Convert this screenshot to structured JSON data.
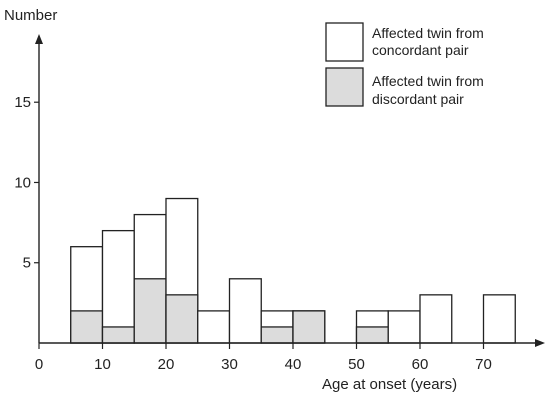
{
  "chart_data": {
    "type": "bar",
    "subtype": "stacked-histogram",
    "ylabel": "Number",
    "xlabel": "Age at onset  (years)",
    "xlim": [
      0,
      80
    ],
    "ylim": [
      0,
      19
    ],
    "xticks": [
      0,
      10,
      20,
      30,
      40,
      50,
      60,
      70
    ],
    "yticks": [
      5,
      10,
      15
    ],
    "legend_position": "top-right",
    "bin_width": 5,
    "bins": [
      {
        "start": 5,
        "end": 10,
        "concordant": 6,
        "discordant": 2
      },
      {
        "start": 10,
        "end": 15,
        "concordant": 7,
        "discordant": 1
      },
      {
        "start": 15,
        "end": 20,
        "concordant": 8,
        "discordant": 4
      },
      {
        "start": 20,
        "end": 25,
        "concordant": 9,
        "discordant": 3
      },
      {
        "start": 25,
        "end": 30,
        "concordant": 2,
        "discordant": 0
      },
      {
        "start": 30,
        "end": 35,
        "concordant": 4,
        "discordant": 0
      },
      {
        "start": 35,
        "end": 40,
        "concordant": 2,
        "discordant": 1
      },
      {
        "start": 40,
        "end": 45,
        "concordant": 2,
        "discordant": 2
      },
      {
        "start": 50,
        "end": 55,
        "concordant": 2,
        "discordant": 1
      },
      {
        "start": 55,
        "end": 60,
        "concordant": 2,
        "discordant": 0
      },
      {
        "start": 60,
        "end": 65,
        "concordant": 3,
        "discordant": 0
      },
      {
        "start": 70,
        "end": 75,
        "concordant": 3,
        "discordant": 0
      }
    ],
    "series": [
      {
        "name": "Affected twin from concordant pair",
        "color": "#ffffff"
      },
      {
        "name": "Affected twin from discordant pair",
        "color": "#dcdcdc"
      }
    ],
    "legend": [
      {
        "line1": "Affected twin from",
        "line2": "concordant pair"
      },
      {
        "line1": "Affected twin from",
        "line2": "discordant pair"
      }
    ]
  }
}
